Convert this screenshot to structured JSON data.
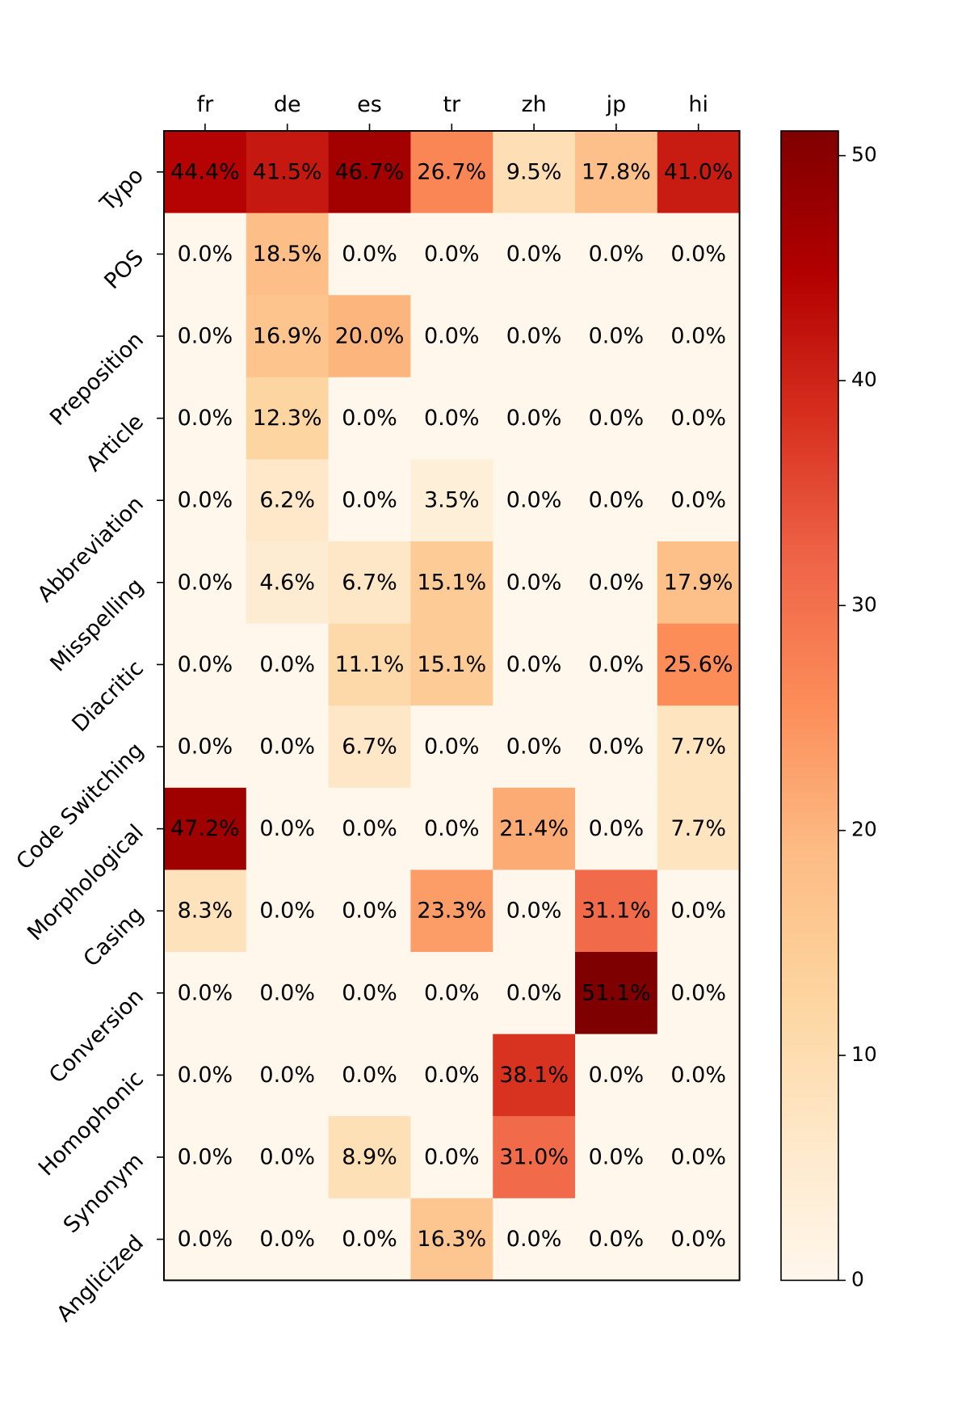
{
  "chart_data": {
    "type": "heatmap",
    "title": "",
    "xlabel": "",
    "ylabel": "",
    "columns": [
      "fr",
      "de",
      "es",
      "tr",
      "zh",
      "jp",
      "hi"
    ],
    "rows": [
      "Typo",
      "POS",
      "Preposition",
      "Article",
      "Abbreviation",
      "Misspelling",
      "Diacritic",
      "Code Switching",
      "Morphological",
      "Casing",
      "Conversion",
      "Homophonic",
      "Synonym",
      "Anglicized"
    ],
    "values": [
      [
        44.4,
        41.5,
        46.7,
        26.7,
        9.5,
        17.8,
        41.0
      ],
      [
        0.0,
        18.5,
        0.0,
        0.0,
        0.0,
        0.0,
        0.0
      ],
      [
        0.0,
        16.9,
        20.0,
        0.0,
        0.0,
        0.0,
        0.0
      ],
      [
        0.0,
        12.3,
        0.0,
        0.0,
        0.0,
        0.0,
        0.0
      ],
      [
        0.0,
        6.2,
        0.0,
        3.5,
        0.0,
        0.0,
        0.0
      ],
      [
        0.0,
        4.6,
        6.7,
        15.1,
        0.0,
        0.0,
        17.9
      ],
      [
        0.0,
        0.0,
        11.1,
        15.1,
        0.0,
        0.0,
        25.6
      ],
      [
        0.0,
        0.0,
        6.7,
        0.0,
        0.0,
        0.0,
        7.7
      ],
      [
        47.2,
        0.0,
        0.0,
        0.0,
        21.4,
        0.0,
        7.7
      ],
      [
        8.3,
        0.0,
        0.0,
        23.3,
        0.0,
        31.1,
        0.0
      ],
      [
        0.0,
        0.0,
        0.0,
        0.0,
        0.0,
        51.1,
        0.0
      ],
      [
        0.0,
        0.0,
        0.0,
        0.0,
        38.1,
        0.0,
        0.0
      ],
      [
        0.0,
        0.0,
        8.9,
        0.0,
        31.0,
        0.0,
        0.0
      ],
      [
        0.0,
        0.0,
        0.0,
        16.3,
        0.0,
        0.0,
        0.0
      ]
    ],
    "value_suffix": "%",
    "colormap": "OrRd",
    "colorbar": {
      "min": 0,
      "max": 51.1,
      "ticks": [
        0,
        10,
        20,
        30,
        40,
        50
      ],
      "tick_labels": [
        "0",
        "10",
        "20",
        "30",
        "40",
        "50"
      ]
    },
    "x_axis_position": "top",
    "legend_position": "right"
  },
  "colors": {
    "colormap_stops": [
      "#fff7ec",
      "#fee8c8",
      "#fdd49e",
      "#fdbb84",
      "#fc8d59",
      "#ef6548",
      "#d7301f",
      "#b30000",
      "#7f0000"
    ]
  }
}
